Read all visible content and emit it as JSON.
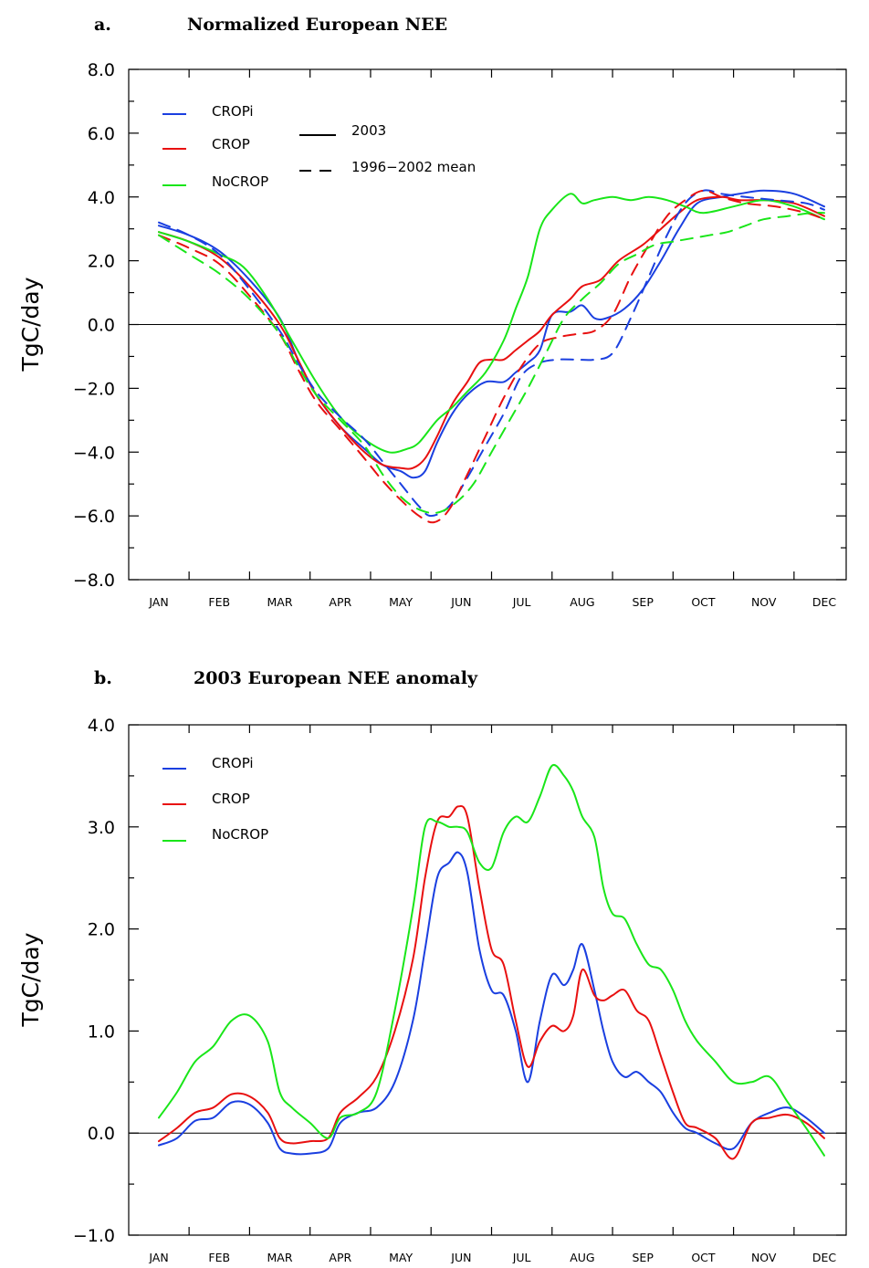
{
  "colors": {
    "CROPi": "#1a3fe0",
    "CROP": "#e81010",
    "NoCROP": "#19e619",
    "axis": "#000000"
  },
  "chart_data": [
    {
      "type": "line",
      "panel_label": "a.",
      "title": "Normalized European NEE",
      "xlabel": "",
      "ylabel": "TgC/day",
      "categories": [
        "JAN",
        "FEB",
        "MAR",
        "APR",
        "MAY",
        "JUN",
        "JUL",
        "AUG",
        "SEP",
        "OCT",
        "NOV",
        "DEC"
      ],
      "x_unit": "month (1 = mid-January)",
      "ylim": [
        -8,
        8
      ],
      "yticks": [
        8,
        6,
        4,
        2,
        0,
        -2,
        -4,
        -6,
        -8
      ],
      "ytick_labels": [
        "8.0",
        "6.0",
        "4.0",
        "2.0",
        "0.0",
        "−2.0",
        "−4.0",
        "−6.0",
        "−8.0"
      ],
      "zero_line": true,
      "legend": {
        "position": "top-left",
        "entries": [
          "CROPi",
          "CROP",
          "NoCROP"
        ],
        "styles": [
          {
            "label": "2003",
            "dash": "solid"
          },
          {
            "label": "1996−2002 mean",
            "dash": "dashed"
          }
        ]
      },
      "series": [
        {
          "name": "CROPi",
          "style": "solid",
          "x": [
            1.0,
            1.5,
            2.0,
            2.5,
            3.0,
            3.3,
            3.6,
            4.0,
            4.4,
            4.7,
            5.0,
            5.2,
            5.4,
            5.6,
            5.85,
            6.1,
            6.4,
            6.7,
            6.9,
            7.1,
            7.3,
            7.5,
            7.8,
            8.0,
            8.2,
            8.4,
            8.7,
            9.0,
            9.3,
            9.6,
            9.9,
            10.3,
            10.6,
            11.0,
            11.5,
            12.0
          ],
          "y": [
            3.1,
            2.8,
            2.3,
            1.4,
            0.2,
            -1.1,
            -2.2,
            -3.2,
            -3.9,
            -4.4,
            -4.6,
            -4.8,
            -4.6,
            -3.7,
            -2.8,
            -2.2,
            -1.8,
            -1.8,
            -1.5,
            -1.2,
            -0.8,
            0.3,
            0.4,
            0.6,
            0.2,
            0.2,
            0.5,
            1.1,
            2.0,
            3.0,
            3.8,
            4.0,
            4.1,
            4.2,
            4.1,
            3.7
          ]
        },
        {
          "name": "CROP",
          "style": "solid",
          "x": [
            1.0,
            1.5,
            2.0,
            2.5,
            3.0,
            3.3,
            3.6,
            4.0,
            4.4,
            4.7,
            5.0,
            5.2,
            5.4,
            5.6,
            5.85,
            6.1,
            6.3,
            6.5,
            6.7,
            6.9,
            7.1,
            7.3,
            7.5,
            7.8,
            8.0,
            8.3,
            8.6,
            9.0,
            9.3,
            9.6,
            9.9,
            10.3,
            10.6,
            11.0,
            11.5,
            12.0
          ],
          "y": [
            2.9,
            2.6,
            2.1,
            1.2,
            0.0,
            -1.1,
            -2.2,
            -3.2,
            -4.0,
            -4.4,
            -4.5,
            -4.5,
            -4.2,
            -3.5,
            -2.5,
            -1.8,
            -1.2,
            -1.1,
            -1.1,
            -0.8,
            -0.5,
            -0.2,
            0.3,
            0.8,
            1.2,
            1.4,
            2.0,
            2.5,
            3.0,
            3.5,
            3.9,
            4.0,
            3.9,
            3.9,
            3.8,
            3.4
          ]
        },
        {
          "name": "NoCROP",
          "style": "solid",
          "x": [
            1.0,
            1.5,
            2.0,
            2.4,
            2.8,
            3.2,
            3.6,
            4.0,
            4.4,
            4.8,
            5.1,
            5.3,
            5.6,
            5.85,
            6.1,
            6.4,
            6.7,
            6.9,
            7.1,
            7.3,
            7.5,
            7.8,
            8.0,
            8.2,
            8.5,
            8.8,
            9.1,
            9.4,
            9.7,
            10.0,
            10.5,
            11.0,
            11.5,
            12.0
          ],
          "y": [
            2.9,
            2.6,
            2.2,
            1.8,
            0.8,
            -0.5,
            -1.8,
            -2.9,
            -3.6,
            -4.0,
            -3.9,
            -3.7,
            -3.0,
            -2.6,
            -2.1,
            -1.5,
            -0.5,
            0.5,
            1.5,
            3.0,
            3.6,
            4.1,
            3.8,
            3.9,
            4.0,
            3.9,
            4.0,
            3.9,
            3.7,
            3.5,
            3.7,
            3.9,
            3.7,
            3.3
          ]
        },
        {
          "name": "CROPi",
          "style": "dashed",
          "x": [
            1.0,
            1.5,
            2.0,
            2.5,
            3.0,
            3.3,
            3.6,
            4.0,
            4.4,
            4.7,
            5.0,
            5.3,
            5.5,
            5.8,
            6.1,
            6.4,
            6.7,
            7.0,
            7.3,
            7.6,
            7.9,
            8.2,
            8.5,
            8.8,
            9.1,
            9.4,
            9.7,
            10.0,
            10.3,
            10.7,
            11.2,
            11.7,
            12.0
          ],
          "y": [
            3.2,
            2.8,
            2.2,
            1.1,
            -0.2,
            -1.2,
            -2.1,
            -2.9,
            -3.6,
            -4.3,
            -5.0,
            -5.7,
            -6.0,
            -5.7,
            -4.8,
            -3.8,
            -2.8,
            -1.6,
            -1.2,
            -1.1,
            -1.1,
            -1.1,
            -0.9,
            0.2,
            1.5,
            2.8,
            3.8,
            4.2,
            4.1,
            4.0,
            3.9,
            3.8,
            3.6
          ]
        },
        {
          "name": "CROP",
          "style": "dashed",
          "x": [
            1.0,
            1.5,
            2.0,
            2.5,
            3.0,
            3.3,
            3.6,
            4.0,
            4.4,
            4.7,
            5.0,
            5.3,
            5.55,
            5.8,
            6.1,
            6.4,
            6.7,
            7.0,
            7.3,
            7.6,
            7.9,
            8.2,
            8.5,
            8.8,
            9.1,
            9.4,
            9.7,
            10.0,
            10.3,
            10.7,
            11.2,
            11.7,
            12.0
          ],
          "y": [
            2.8,
            2.4,
            1.9,
            0.9,
            -0.3,
            -1.4,
            -2.4,
            -3.3,
            -4.2,
            -4.9,
            -5.5,
            -6.0,
            -6.2,
            -5.8,
            -4.7,
            -3.5,
            -2.3,
            -1.3,
            -0.6,
            -0.4,
            -0.3,
            -0.2,
            0.3,
            1.5,
            2.5,
            3.4,
            3.9,
            4.2,
            4.0,
            3.8,
            3.7,
            3.5,
            3.3
          ]
        },
        {
          "name": "NoCROP",
          "style": "dashed",
          "x": [
            1.0,
            1.5,
            2.0,
            2.5,
            3.0,
            3.3,
            3.6,
            4.0,
            4.4,
            4.7,
            5.0,
            5.3,
            5.6,
            5.9,
            6.2,
            6.5,
            6.8,
            7.1,
            7.4,
            7.7,
            8.0,
            8.3,
            8.6,
            8.9,
            9.2,
            9.5,
            9.8,
            10.1,
            10.4,
            10.7,
            11.0,
            11.4,
            11.8,
            12.0
          ],
          "y": [
            2.8,
            2.2,
            1.6,
            0.8,
            -0.3,
            -1.3,
            -2.2,
            -3.0,
            -3.8,
            -4.7,
            -5.4,
            -5.8,
            -5.9,
            -5.6,
            -5.0,
            -4.0,
            -3.0,
            -2.0,
            -0.9,
            0.2,
            0.8,
            1.3,
            1.9,
            2.2,
            2.5,
            2.6,
            2.7,
            2.8,
            2.9,
            3.1,
            3.3,
            3.4,
            3.5,
            3.5
          ]
        }
      ]
    },
    {
      "type": "line",
      "panel_label": "b.",
      "title": "2003 European NEE anomaly",
      "xlabel": "",
      "ylabel": "TgC/day",
      "categories": [
        "JAN",
        "FEB",
        "MAR",
        "APR",
        "MAY",
        "JUN",
        "JUL",
        "AUG",
        "SEP",
        "OCT",
        "NOV",
        "DEC"
      ],
      "x_unit": "month (1 = mid-January)",
      "ylim": [
        -1,
        4
      ],
      "yticks": [
        4,
        3,
        2,
        1,
        0,
        -1
      ],
      "ytick_labels": [
        "4.0",
        "3.0",
        "2.0",
        "1.0",
        "0.0",
        "−1.0"
      ],
      "zero_line": true,
      "legend": {
        "position": "top-left",
        "entries": [
          "CROPi",
          "CROP",
          "NoCROP"
        ]
      },
      "series": [
        {
          "name": "CROPi",
          "style": "solid",
          "x": [
            1.0,
            1.3,
            1.6,
            1.9,
            2.2,
            2.5,
            2.8,
            3.0,
            3.2,
            3.5,
            3.8,
            4.0,
            4.3,
            4.6,
            4.9,
            5.2,
            5.4,
            5.6,
            5.8,
            5.95,
            6.1,
            6.3,
            6.5,
            6.7,
            6.9,
            7.1,
            7.3,
            7.5,
            7.7,
            7.85,
            8.0,
            8.2,
            8.35,
            8.5,
            8.7,
            8.9,
            9.1,
            9.3,
            9.5,
            9.7,
            9.9,
            10.2,
            10.5,
            10.8,
            11.1,
            11.4,
            11.7,
            12.0
          ],
          "y": [
            -0.12,
            -0.05,
            0.12,
            0.15,
            0.3,
            0.28,
            0.1,
            -0.15,
            -0.2,
            -0.2,
            -0.15,
            0.1,
            0.2,
            0.25,
            0.5,
            1.1,
            1.8,
            2.5,
            2.65,
            2.75,
            2.55,
            1.8,
            1.4,
            1.35,
            1.0,
            0.5,
            1.1,
            1.55,
            1.45,
            1.6,
            1.85,
            1.4,
            1.0,
            0.7,
            0.55,
            0.6,
            0.5,
            0.4,
            0.2,
            0.05,
            0.0,
            -0.1,
            -0.15,
            0.1,
            0.2,
            0.25,
            0.15,
            0.0
          ]
        },
        {
          "name": "CROP",
          "style": "solid",
          "x": [
            1.0,
            1.3,
            1.6,
            1.9,
            2.2,
            2.5,
            2.8,
            3.0,
            3.2,
            3.5,
            3.8,
            4.0,
            4.3,
            4.6,
            4.9,
            5.2,
            5.4,
            5.6,
            5.8,
            5.95,
            6.1,
            6.3,
            6.5,
            6.7,
            6.9,
            7.1,
            7.3,
            7.5,
            7.7,
            7.85,
            8.0,
            8.2,
            8.35,
            8.5,
            8.7,
            8.9,
            9.1,
            9.3,
            9.5,
            9.7,
            9.9,
            10.2,
            10.5,
            10.8,
            11.1,
            11.4,
            11.7,
            12.0
          ],
          "y": [
            -0.08,
            0.05,
            0.2,
            0.25,
            0.38,
            0.36,
            0.2,
            -0.05,
            -0.1,
            -0.08,
            -0.05,
            0.2,
            0.35,
            0.55,
            1.0,
            1.7,
            2.5,
            3.05,
            3.1,
            3.2,
            3.1,
            2.4,
            1.8,
            1.65,
            1.1,
            0.65,
            0.9,
            1.05,
            1.0,
            1.15,
            1.6,
            1.35,
            1.3,
            1.35,
            1.4,
            1.2,
            1.1,
            0.75,
            0.4,
            0.1,
            0.05,
            -0.05,
            -0.25,
            0.1,
            0.15,
            0.18,
            0.1,
            -0.05
          ]
        },
        {
          "name": "NoCROP",
          "style": "solid",
          "x": [
            1.0,
            1.3,
            1.6,
            1.9,
            2.2,
            2.5,
            2.8,
            3.0,
            3.2,
            3.5,
            3.8,
            4.0,
            4.3,
            4.6,
            4.9,
            5.2,
            5.4,
            5.6,
            5.8,
            5.95,
            6.1,
            6.3,
            6.5,
            6.7,
            6.9,
            7.1,
            7.3,
            7.5,
            7.7,
            7.85,
            8.0,
            8.2,
            8.35,
            8.5,
            8.7,
            8.9,
            9.1,
            9.3,
            9.5,
            9.7,
            9.9,
            10.2,
            10.5,
            10.8,
            11.1,
            11.4,
            11.7,
            12.0
          ],
          "y": [
            0.15,
            0.4,
            0.7,
            0.85,
            1.1,
            1.15,
            0.9,
            0.4,
            0.25,
            0.1,
            -0.05,
            0.15,
            0.2,
            0.4,
            1.2,
            2.2,
            3.0,
            3.05,
            3.0,
            3.0,
            2.95,
            2.65,
            2.6,
            2.95,
            3.1,
            3.05,
            3.3,
            3.6,
            3.5,
            3.35,
            3.1,
            2.9,
            2.4,
            2.15,
            2.1,
            1.85,
            1.65,
            1.6,
            1.4,
            1.1,
            0.9,
            0.7,
            0.5,
            0.5,
            0.55,
            0.3,
            0.05,
            -0.22
          ]
        }
      ]
    }
  ]
}
